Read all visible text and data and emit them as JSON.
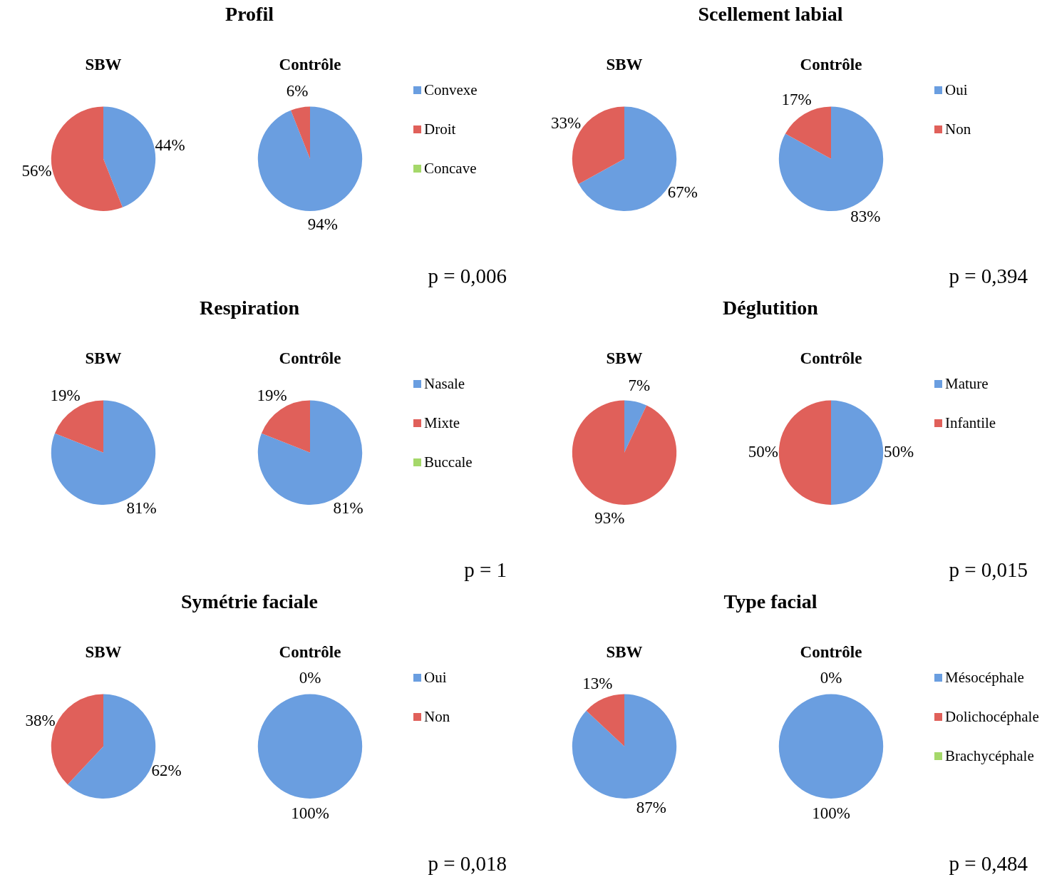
{
  "chart_data": [
    {
      "type": "pie",
      "title": "Profil",
      "categories": [
        "Convexe",
        "Droit",
        "Concave"
      ],
      "colors": [
        "#6a9ee0",
        "#e0605a",
        "#a5d86a"
      ],
      "legend": "right",
      "annotations": [
        "p = 0,006"
      ],
      "series": [
        {
          "name": "SBW",
          "values": [
            44,
            56,
            0
          ],
          "value_labels": [
            "44%",
            "56%",
            null
          ]
        },
        {
          "name": "Contrôle",
          "values": [
            94,
            6,
            0
          ],
          "value_labels": [
            "94%",
            "6%",
            null
          ]
        }
      ]
    },
    {
      "type": "pie",
      "title": "Scellement labial",
      "categories": [
        "Oui",
        "Non"
      ],
      "colors": [
        "#6a9ee0",
        "#e0605a"
      ],
      "legend": "right",
      "annotations": [
        "p = 0,394"
      ],
      "series": [
        {
          "name": "SBW",
          "values": [
            67,
            33
          ],
          "value_labels": [
            "67%",
            "33%"
          ]
        },
        {
          "name": "Contrôle",
          "values": [
            83,
            17
          ],
          "value_labels": [
            "83%",
            "17%"
          ]
        }
      ]
    },
    {
      "type": "pie",
      "title": "Respiration",
      "categories": [
        "Nasale",
        "Mixte",
        "Buccale"
      ],
      "colors": [
        "#6a9ee0",
        "#e0605a",
        "#a5d86a"
      ],
      "legend": "right",
      "annotations": [
        "p = 1"
      ],
      "series": [
        {
          "name": "SBW",
          "values": [
            81,
            19,
            0
          ],
          "value_labels": [
            "81%",
            "19%",
            null
          ]
        },
        {
          "name": "Contrôle",
          "values": [
            81,
            19,
            0
          ],
          "value_labels": [
            "81%",
            "19%",
            null
          ]
        }
      ]
    },
    {
      "type": "pie",
      "title": "Déglutition",
      "categories": [
        "Mature",
        "Infantile"
      ],
      "colors": [
        "#6a9ee0",
        "#e0605a"
      ],
      "legend": "right",
      "annotations": [
        "p = 0,015"
      ],
      "series": [
        {
          "name": "SBW",
          "values": [
            7,
            93
          ],
          "value_labels": [
            "7%",
            "93%"
          ]
        },
        {
          "name": "Contrôle",
          "values": [
            50,
            50
          ],
          "value_labels": [
            "50%",
            "50%"
          ]
        }
      ]
    },
    {
      "type": "pie",
      "title": "Symétrie faciale",
      "categories": [
        "Oui",
        "Non"
      ],
      "colors": [
        "#6a9ee0",
        "#e0605a"
      ],
      "legend": "right",
      "annotations": [
        "p = 0,018"
      ],
      "series": [
        {
          "name": "SBW",
          "values": [
            62,
            38
          ],
          "value_labels": [
            "62%",
            "38%"
          ]
        },
        {
          "name": "Contrôle",
          "values": [
            100,
            0
          ],
          "value_labels": [
            "100%",
            "0%"
          ]
        }
      ]
    },
    {
      "type": "pie",
      "title": "Type facial",
      "categories": [
        "Mésocéphale",
        "Dolichocéphale",
        "Brachycéphale"
      ],
      "colors": [
        "#6a9ee0",
        "#e0605a",
        "#a5d86a"
      ],
      "legend": "right",
      "annotations": [
        "p = 0,484"
      ],
      "series": [
        {
          "name": "SBW",
          "values": [
            87,
            13,
            0
          ],
          "value_labels": [
            "87%",
            "13%",
            null
          ]
        },
        {
          "name": "Contrôle",
          "values": [
            100,
            0,
            0
          ],
          "value_labels": [
            "100%",
            "0%",
            null
          ]
        }
      ]
    }
  ]
}
